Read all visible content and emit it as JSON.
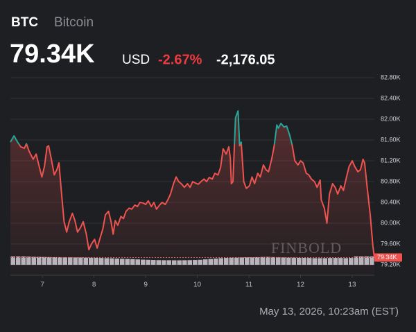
{
  "chart_data": {
    "type": "line",
    "symbol": "BTC",
    "name": "Bitcoin",
    "price": {
      "value": 79340,
      "label": "79.34K"
    },
    "currency": "USD",
    "change_percent": "-2.67%",
    "change": {
      "value": -2176.05,
      "label": "-2,176.05"
    },
    "timestamp": "May 13, 2026, 10:23am (EST)",
    "watermark": "FINBOLD",
    "up_color": "#26a69a",
    "down_color": "#ef5350",
    "grid": true,
    "xlim": [
      6.38,
      13.43
    ],
    "xticks": [
      7,
      8,
      9,
      10,
      11,
      12,
      13
    ],
    "ylim": [
      79000,
      82950
    ],
    "yticks": [
      {
        "value": 79200,
        "label": "79.20K"
      },
      {
        "value": 79600,
        "label": "79.60K"
      },
      {
        "value": 80000,
        "label": "80.00K"
      },
      {
        "value": 80400,
        "label": "80.40K"
      },
      {
        "value": 80800,
        "label": "80.80K"
      },
      {
        "value": 81200,
        "label": "81.20K"
      },
      {
        "value": 81600,
        "label": "81.60K"
      },
      {
        "value": 82000,
        "label": "82.00K"
      },
      {
        "value": 82400,
        "label": "82.40K"
      },
      {
        "value": 82800,
        "label": "82.80K"
      }
    ],
    "x": [
      6.38,
      6.45,
      6.52,
      6.58,
      6.65,
      6.69,
      6.74,
      6.82,
      6.88,
      6.93,
      6.99,
      7.04,
      7.09,
      7.12,
      7.17,
      7.23,
      7.28,
      7.32,
      7.36,
      7.42,
      7.47,
      7.52,
      7.58,
      7.63,
      7.68,
      7.74,
      7.79,
      7.85,
      7.9,
      7.95,
      8.01,
      8.06,
      8.11,
      8.17,
      8.22,
      8.28,
      8.33,
      8.37,
      8.41,
      8.46,
      8.52,
      8.57,
      8.62,
      8.68,
      8.73,
      8.79,
      8.84,
      8.89,
      8.95,
      9.0,
      9.05,
      9.11,
      9.16,
      9.21,
      9.27,
      9.32,
      9.38,
      9.43,
      9.48,
      9.54,
      9.59,
      9.64,
      9.7,
      9.75,
      9.81,
      9.86,
      9.91,
      9.97,
      10.02,
      10.07,
      10.13,
      10.18,
      10.23,
      10.29,
      10.34,
      10.4,
      10.45,
      10.5,
      10.56,
      10.61,
      10.64,
      10.66,
      10.69,
      10.74,
      10.79,
      10.82,
      10.85,
      10.9,
      10.95,
      11.01,
      11.06,
      11.11,
      11.17,
      11.22,
      11.28,
      11.33,
      11.38,
      11.44,
      11.49,
      11.54,
      11.57,
      11.62,
      11.68,
      11.73,
      11.79,
      11.84,
      11.89,
      11.95,
      12.0,
      12.05,
      12.11,
      12.16,
      12.21,
      12.27,
      12.32,
      12.38,
      12.4,
      12.46,
      12.51,
      12.56,
      12.62,
      12.67,
      12.72,
      12.78,
      12.83,
      12.89,
      12.94,
      13.0,
      13.05,
      13.11,
      13.16,
      13.21,
      13.24,
      13.29,
      13.35,
      13.4,
      13.43
    ],
    "values": [
      81560,
      81680,
      81560,
      81470,
      81440,
      81530,
      81390,
      81230,
      81330,
      81120,
      80890,
      81090,
      81470,
      81490,
      81250,
      80930,
      81030,
      81160,
      80690,
      80030,
      79830,
      80030,
      80190,
      80050,
      79830,
      79920,
      80030,
      79790,
      79490,
      79600,
      79690,
      79520,
      79690,
      79890,
      80160,
      80230,
      80030,
      79790,
      80050,
      79960,
      80130,
      80090,
      80230,
      80290,
      80270,
      80350,
      80320,
      80400,
      80390,
      80360,
      80430,
      80320,
      80400,
      80270,
      80350,
      80400,
      80360,
      80450,
      80560,
      80760,
      80890,
      80800,
      80750,
      80690,
      80760,
      80690,
      80800,
      80770,
      80750,
      80800,
      80850,
      80800,
      80880,
      80850,
      80960,
      80930,
      81070,
      81430,
      81330,
      81470,
      81250,
      80760,
      80800,
      82030,
      82160,
      81490,
      81560,
      80800,
      80670,
      80720,
      80890,
      80760,
      80960,
      80890,
      81120,
      81030,
      80990,
      81230,
      81490,
      81890,
      81830,
      81920,
      81850,
      81870,
      81690,
      81490,
      81200,
      81120,
      81200,
      81160,
      80960,
      80930,
      80850,
      80800,
      80690,
      80830,
      80450,
      80290,
      80000,
      80560,
      80760,
      80690,
      80560,
      80720,
      80630,
      80890,
      81090,
      81200,
      81090,
      80990,
      81030,
      81230,
      81160,
      80690,
      80160,
      79560,
      79340
    ],
    "volume": {
      "color": "#d1d4dc",
      "values": [
        10,
        10,
        10,
        9.8,
        9.6,
        9.5,
        9.4,
        9.3,
        9.2,
        9.2,
        9,
        9,
        8.8,
        8.8,
        8.6,
        8.5,
        8.4,
        8.2,
        8,
        7.8,
        7.5,
        7.2,
        7,
        6.8,
        6.5,
        6.2,
        6,
        5.8,
        5.6,
        5.5,
        5.5,
        5.4,
        5.4,
        5.5,
        5.6,
        5.8,
        6,
        6.5,
        7,
        7.5,
        8,
        8.3,
        8.5,
        8.6,
        8.8,
        9,
        9,
        9.2,
        9.4,
        9.5,
        9.3,
        9,
        8.8,
        8.6,
        8.5,
        8.4,
        8.3,
        8.2,
        8,
        8,
        8,
        8.2,
        8.3,
        8.2,
        8,
        8.2,
        10,
        10,
        10,
        10
      ]
    }
  }
}
